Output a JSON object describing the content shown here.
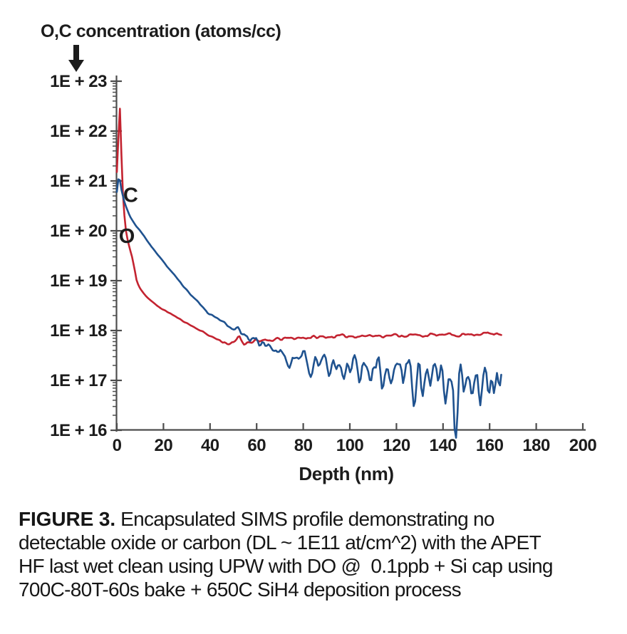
{
  "figure": {
    "caption_label": "FIGURE 3.",
    "caption_lines": [
      "Encapsulated SIMS profile demonstrating no",
      "detectable oxide or carbon (DL ~ 1E11 at/cm^2) with the APET",
      "HF last wet clean using UPW with DO @  0.1ppb + Si cap using",
      "700C-80T-60s bake + 650C SiH4 deposition process"
    ]
  },
  "icons": {
    "y_axis_pointer": "down-arrow"
  },
  "chart_data": {
    "type": "line",
    "title": "",
    "ylabel": "O,C concentration (atoms/cc)",
    "xlabel": "Depth (nm)",
    "grid": false,
    "legend": "inline-curve-labels",
    "x_axis": {
      "min": 0,
      "max": 200,
      "tick_step": 20,
      "tick_labels": [
        "0",
        "20",
        "40",
        "60",
        "80",
        "100",
        "120",
        "140",
        "160",
        "180",
        "200"
      ]
    },
    "y_axis": {
      "scale": "log",
      "min": 1e+16,
      "max": 1e+23,
      "tick_labels": [
        "1E + 23",
        "1E + 22",
        "1E + 21",
        "1E + 20",
        "1E + 19",
        "1E + 18",
        "1E + 17",
        "1E + 16"
      ]
    },
    "colors": {
      "axis": "#4d4d4d",
      "text": "#1c1c1c",
      "oxygen": "#c32330",
      "carbon": "#1f528f"
    },
    "series": [
      {
        "name": "O",
        "label": "O",
        "element": "oxygen",
        "color": "#c32330",
        "width": 2.6,
        "seed": 11,
        "label_at": [
          4.3,
          8e+19
        ],
        "points": [
          [
            0,
            1.5e+21
          ],
          [
            0.7,
            8e+21
          ],
          [
            1.3,
            2.8e+22
          ],
          [
            1.9,
            4e+21
          ],
          [
            2.3,
            1.1e+21
          ],
          [
            2.7,
            4.5e+20
          ],
          [
            3.3,
            1.9e+20
          ],
          [
            4,
            9e+19
          ],
          [
            5,
            5.5e+19
          ],
          [
            6.5,
            3e+19
          ],
          [
            7.5,
            1.8e+19
          ],
          [
            8.6,
            9.5e+18
          ],
          [
            10,
            7e+18
          ],
          [
            12,
            5.2e+18
          ],
          [
            14,
            4.2e+18
          ],
          [
            17,
            3.2e+18
          ],
          [
            20,
            2.6e+18
          ],
          [
            23,
            2.2e+18
          ],
          [
            26,
            1.8e+18
          ],
          [
            29,
            1.5e+18
          ],
          [
            32,
            1.25e+18
          ],
          [
            35,
            1.05e+18
          ],
          [
            38,
            8.8e+17
          ],
          [
            41,
            7.4e+17
          ],
          [
            44,
            6.4e+17
          ],
          [
            47,
            5.6e+17
          ],
          [
            50,
            5.4e+17
          ],
          [
            52.5,
            7.6e+17
          ],
          [
            54.5,
            5.4e+17
          ],
          [
            57,
            6e+17
          ],
          [
            60,
            6.5e+17
          ],
          [
            63,
            6e+17
          ],
          [
            66,
            6.3e+17
          ],
          [
            70,
            6.8e+17
          ],
          [
            75,
            7e+17
          ],
          [
            80,
            7.2e+17
          ],
          [
            88,
            7.4e+17
          ],
          [
            96,
            7.7e+17
          ],
          [
            104,
            7.8e+17
          ],
          [
            112,
            7.9e+17
          ],
          [
            120,
            8e+17
          ],
          [
            128,
            8e+17
          ],
          [
            136,
            8.1e+17
          ],
          [
            144,
            8.2e+17
          ],
          [
            152,
            8.4e+17
          ],
          [
            158,
            8.8e+17
          ],
          [
            162,
            8.5e+17
          ],
          [
            165,
            8.4e+17
          ]
        ],
        "noise_decades": [
          [
            0,
            0.004
          ],
          [
            36,
            0.015
          ],
          [
            42,
            0.03
          ],
          [
            48,
            0.05
          ],
          [
            56,
            0.055
          ],
          [
            70,
            0.045
          ],
          [
            165,
            0.05
          ]
        ],
        "spikes": []
      },
      {
        "name": "C",
        "label": "C",
        "element": "carbon",
        "color": "#1f528f",
        "width": 2.6,
        "seed": 20,
        "label_at": [
          5.9,
          5.3e+20
        ],
        "points": [
          [
            0,
            6e+20
          ],
          [
            0.9,
            1.35e+21
          ],
          [
            2,
            6.5e+20
          ],
          [
            3.5,
            3.4e+20
          ],
          [
            5.5,
            2e+20
          ],
          [
            8,
            1.3e+20
          ],
          [
            11.5,
            8.2e+19
          ],
          [
            15,
            4.6e+19
          ],
          [
            19,
            2.8e+19
          ],
          [
            23,
            1.6e+19
          ],
          [
            27,
            9.5e+18
          ],
          [
            31,
            5.8e+18
          ],
          [
            35,
            3.6e+18
          ],
          [
            39,
            2.3e+18
          ],
          [
            43,
            1.7e+18
          ],
          [
            47,
            1.3e+18
          ],
          [
            50,
            1.15e+18
          ],
          [
            53,
            9.2e+17
          ],
          [
            56,
            7.4e+17
          ],
          [
            59,
            6.6e+17
          ],
          [
            62,
            5.6e+17
          ],
          [
            65,
            4.8e+17
          ],
          [
            68,
            4.3e+17
          ],
          [
            72,
            3.7e+17
          ],
          [
            76,
            3.3e+17
          ],
          [
            80,
            3.1e+17
          ],
          [
            84,
            2.8e+17
          ],
          [
            88,
            2.6e+17
          ],
          [
            92,
            2.5e+17
          ],
          [
            96,
            2.3e+17
          ],
          [
            100,
            2.1e+17
          ],
          [
            105,
            2e+17
          ],
          [
            110,
            1.9e+17
          ],
          [
            116,
            1.85e+17
          ],
          [
            122,
            1.8e+17
          ],
          [
            128,
            1.75e+17
          ],
          [
            134,
            1.7e+17
          ],
          [
            140,
            1.7e+17
          ],
          [
            146,
            1.65e+17
          ],
          [
            152,
            1.6e+17
          ],
          [
            157,
            1.8e+17
          ],
          [
            161,
            1.6e+17
          ],
          [
            165,
            1.7e+17
          ]
        ],
        "noise_decades": [
          [
            0,
            0.005
          ],
          [
            38,
            0.02
          ],
          [
            46,
            0.05
          ],
          [
            52,
            0.09
          ],
          [
            58,
            0.12
          ],
          [
            64,
            0.15
          ],
          [
            72,
            0.18
          ],
          [
            82,
            0.22
          ],
          [
            92,
            0.25
          ],
          [
            102,
            0.28
          ],
          [
            120,
            0.3
          ],
          [
            165,
            0.3
          ]
        ],
        "spikes": [
          [
            74,
            -0.28,
            0.7
          ],
          [
            83,
            -0.33,
            0.7
          ],
          [
            91,
            -0.38,
            0.7
          ],
          [
            97,
            -0.3,
            0.6
          ],
          [
            104,
            -0.36,
            0.7
          ],
          [
            109,
            -0.5,
            0.7
          ],
          [
            114,
            -0.36,
            0.6
          ],
          [
            118,
            -0.46,
            0.7
          ],
          [
            123,
            -0.36,
            0.6
          ],
          [
            127.5,
            -0.85,
            0.7
          ],
          [
            131,
            -0.4,
            0.6
          ],
          [
            134.5,
            -0.55,
            0.7
          ],
          [
            138,
            -0.35,
            0.6
          ],
          [
            141,
            -0.5,
            0.7
          ],
          [
            145.5,
            -1.7,
            0.7
          ],
          [
            149,
            -0.45,
            0.6
          ],
          [
            152.5,
            -0.55,
            0.7
          ],
          [
            156,
            -0.6,
            0.7
          ],
          [
            159.5,
            -0.4,
            0.6
          ],
          [
            162,
            -0.55,
            0.7
          ],
          [
            164.5,
            -0.4,
            0.6
          ]
        ]
      }
    ]
  }
}
